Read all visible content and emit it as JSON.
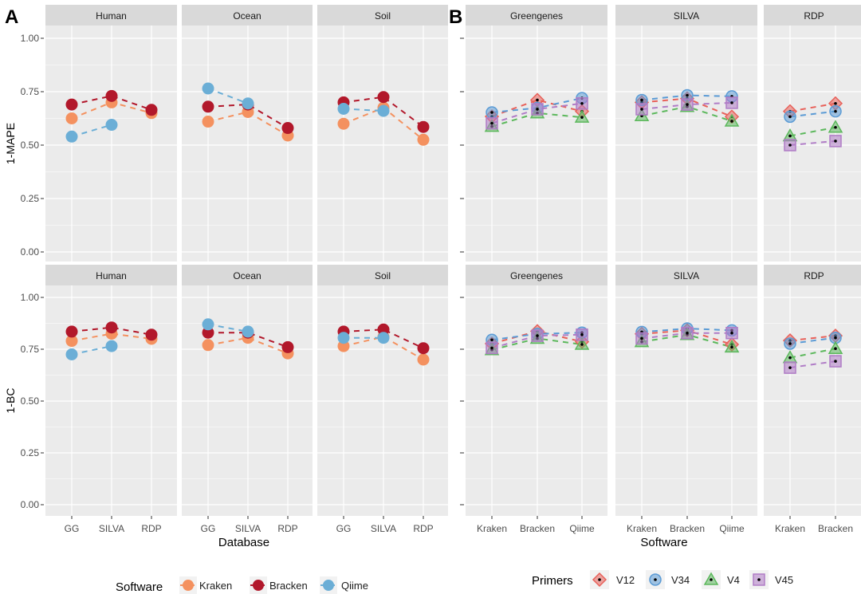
{
  "chart_data": [
    {
      "panel_label": "A",
      "type": "line",
      "xlabel": "Database",
      "rows": [
        {
          "ylabel": "1-MAPE"
        },
        {
          "ylabel": "1-BC"
        }
      ],
      "ylim": [
        0,
        1
      ],
      "yticks": [
        "0.00",
        "0.25",
        "0.50",
        "0.75",
        "1.00"
      ],
      "grid": true,
      "facets": [
        "Human",
        "Ocean",
        "Soil"
      ],
      "categories": [
        "GG",
        "SILVA",
        "RDP"
      ],
      "legend": {
        "title": "Software",
        "position": "bottom"
      },
      "series": [
        {
          "name": "Kraken",
          "color": "#f4915f",
          "values": {
            "1-MAPE": {
              "Human": [
                0.625,
                0.7,
                0.65
              ],
              "Ocean": [
                0.61,
                0.655,
                0.545
              ],
              "Soil": [
                0.6,
                0.675,
                0.525
              ]
            },
            "1-BC": {
              "Human": [
                0.79,
                0.825,
                0.8
              ],
              "Ocean": [
                0.77,
                0.805,
                0.73
              ],
              "Soil": [
                0.765,
                0.81,
                0.7
              ]
            }
          }
        },
        {
          "name": "Bracken",
          "color": "#b2182b",
          "values": {
            "1-MAPE": {
              "Human": [
                0.69,
                0.73,
                0.665
              ],
              "Ocean": [
                0.68,
                0.69,
                0.58
              ],
              "Soil": [
                0.7,
                0.725,
                0.585
              ]
            },
            "1-BC": {
              "Human": [
                0.835,
                0.855,
                0.82
              ],
              "Ocean": [
                0.83,
                0.83,
                0.76
              ],
              "Soil": [
                0.835,
                0.845,
                0.755
              ]
            }
          }
        },
        {
          "name": "Qiime",
          "color": "#6baed6",
          "values": {
            "1-MAPE": {
              "Human": [
                0.54,
                0.595,
                null
              ],
              "Ocean": [
                0.765,
                0.695,
                null
              ],
              "Soil": [
                0.67,
                0.66,
                null
              ]
            },
            "1-BC": {
              "Human": [
                0.725,
                0.765,
                null
              ],
              "Ocean": [
                0.87,
                0.835,
                null
              ],
              "Soil": [
                0.805,
                0.805,
                null
              ]
            }
          }
        }
      ]
    },
    {
      "panel_label": "B",
      "type": "line",
      "xlabel": "Software",
      "rows": [
        {
          "ylabel": ""
        },
        {
          "ylabel": ""
        }
      ],
      "ylim": [
        0,
        1
      ],
      "grid": true,
      "facets": [
        "Greengenes",
        "SILVA",
        "RDP"
      ],
      "facet_categories": {
        "Greengenes": [
          "Kraken",
          "Bracken",
          "Qiime"
        ],
        "SILVA": [
          "Kraken",
          "Bracken",
          "Qiime"
        ],
        "RDP": [
          "Kraken",
          "Bracken"
        ]
      },
      "legend": {
        "title": "Primers",
        "position": "bottom"
      },
      "series": [
        {
          "name": "V12",
          "color": "#e8615a",
          "shape": "diamond",
          "values": {
            "top": {
              "Greengenes": [
                0.634,
                0.711,
                0.658
              ],
              "SILVA": [
                0.7,
                0.718,
                0.633
              ],
              "RDP": [
                0.658,
                0.695
              ]
            },
            "bottom": {
              "Greengenes": [
                0.777,
                0.837,
                0.786
              ],
              "SILVA": [
                0.824,
                0.841,
                0.773
              ],
              "RDP": [
                0.792,
                0.815
              ]
            }
          }
        },
        {
          "name": "V34",
          "color": "#5b9bd5",
          "shape": "circle",
          "values": {
            "top": {
              "Greengenes": [
                0.653,
                0.674,
                0.72
              ],
              "SILVA": [
                0.711,
                0.733,
                0.728
              ],
              "RDP": [
                0.633,
                0.658
              ]
            },
            "bottom": {
              "Greengenes": [
                0.795,
                0.824,
                0.83
              ],
              "SILVA": [
                0.833,
                0.85,
                0.841
              ],
              "RDP": [
                0.777,
                0.805
              ]
            }
          }
        },
        {
          "name": "V4",
          "color": "#5cb85c",
          "shape": "triangle",
          "values": {
            "top": {
              "Greengenes": [
                0.587,
                0.65,
                0.63
              ],
              "SILVA": [
                0.637,
                0.68,
                0.612
              ],
              "RDP": [
                0.543,
                0.583
              ]
            },
            "bottom": {
              "Greengenes": [
                0.747,
                0.802,
                0.773
              ],
              "SILVA": [
                0.786,
                0.82,
                0.76
              ],
              "RDP": [
                0.709,
                0.753
              ]
            }
          }
        },
        {
          "name": "V45",
          "color": "#b07cc6",
          "shape": "square",
          "values": {
            "top": {
              "Greengenes": [
                0.602,
                0.668,
                0.695
              ],
              "SILVA": [
                0.668,
                0.69,
                0.698
              ],
              "RDP": [
                0.5,
                0.519
              ]
            },
            "bottom": {
              "Greengenes": [
                0.756,
                0.815,
                0.82
              ],
              "SILVA": [
                0.802,
                0.828,
                0.828
              ],
              "RDP": [
                0.661,
                0.692
              ]
            }
          }
        }
      ]
    }
  ],
  "colors": {
    "panel_bg": "#ebebeb",
    "strip_bg": "#d9d9d9",
    "grid": "#ffffff",
    "axis_text": "#4d4d4d"
  }
}
